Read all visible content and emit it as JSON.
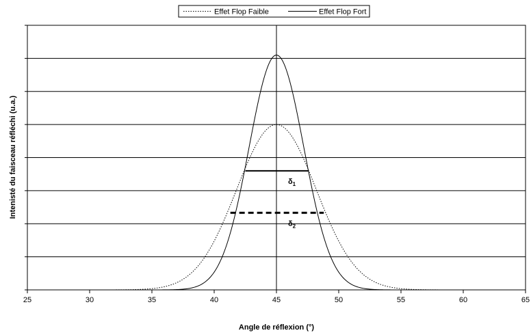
{
  "chart_data": {
    "type": "line",
    "title": "",
    "xlabel": "Angle de réflexion (°)",
    "ylabel": "Intenisté du faisceau réfléchi (u.a.)",
    "xlim": [
      25,
      65
    ],
    "x_ticks": [
      25,
      30,
      35,
      40,
      45,
      50,
      55,
      60,
      65
    ],
    "ylim": [
      0,
      8
    ],
    "y_gridlines": [
      0,
      1,
      2,
      3,
      4,
      5,
      6,
      7,
      8
    ],
    "y_tick_labels_shown": false,
    "grid": "horizontal",
    "legend_placement": "top-center",
    "vertical_marker_x": 45,
    "series": [
      {
        "name": "Effet Flop Faible",
        "style": "dotted",
        "color": "#000000",
        "peak_x": 45,
        "peak_y": 5.0,
        "sigma": 3.2
      },
      {
        "name": "Effet Flop Fort",
        "style": "solid",
        "color": "#000000",
        "peak_x": 45,
        "peak_y": 7.1,
        "sigma": 2.2
      }
    ],
    "annotations": [
      {
        "label": "δ1",
        "base": "δ",
        "sub": "1",
        "style": "solid",
        "x_start": 42.5,
        "x_end": 47.6,
        "y": 3.6
      },
      {
        "label": "δ2",
        "base": "δ",
        "sub": "2",
        "style": "dashed",
        "x_start": 41.3,
        "x_end": 48.8,
        "y": 2.33
      }
    ]
  }
}
